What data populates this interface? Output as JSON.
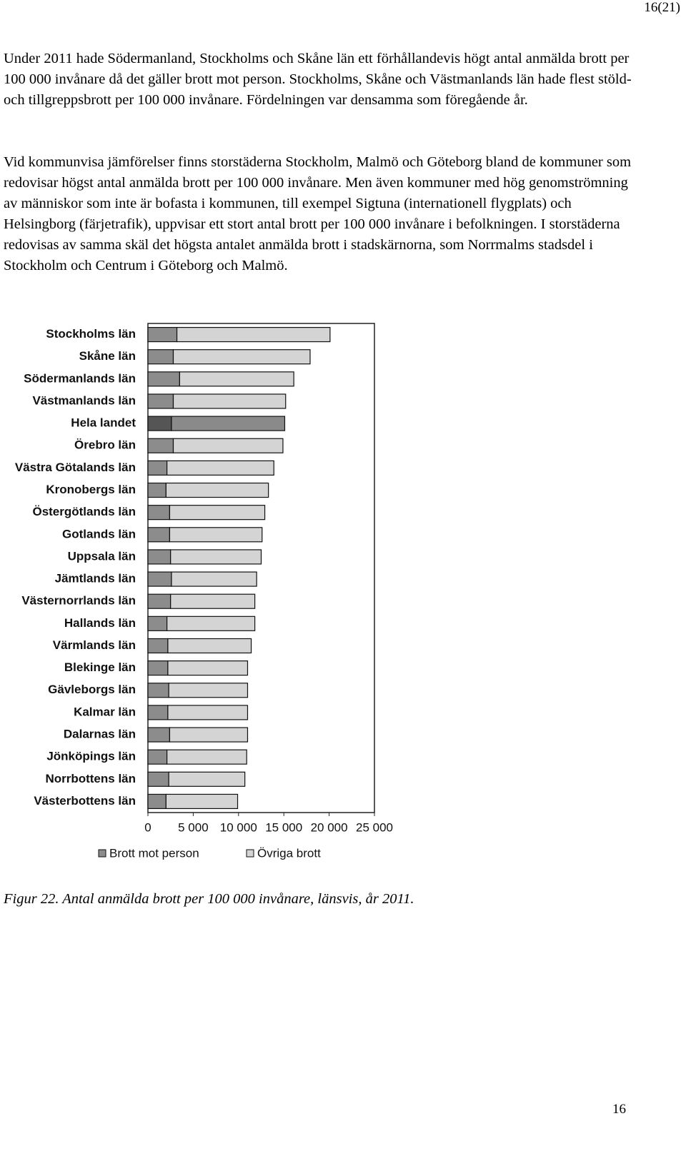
{
  "header": {
    "page_label": "16(21)"
  },
  "paragraphs": [
    "Under 2011 hade Södermanland, Stockholms och Skåne län ett förhållandevis högt antal anmälda brott per 100 000 invånare då det gäller brott mot person. Stockholms, Skåne och Västmanlands län hade flest stöld- och tillgreppsbrott per 100 000 invånare. Fördelningen var densamma som föregående år.",
    "Vid kommunvisa jämförelser finns storstäderna Stockholm, Malmö och Göteborg bland de kommuner som redovisar högst antal anmälda brott per 100 000 invånare. Men även kommuner med hög genomströmning av människor som inte är bofasta i kommunen, till exempel Sigtuna (internationell flygplats) och Helsingborg (färjetrafik), uppvisar ett stort antal brott per 100 000 invånare i befolkningen. I storstäderna redovisas av samma skäl det högsta antalet anmälda brott i stadskärnorna, som Norrmalms stadsdel i Stockholm och Centrum i Göteborg och Malmö."
  ],
  "chart_data": {
    "type": "stacked-barh",
    "categories": [
      "Stockholms län",
      "Skåne län",
      "Södermanlands län",
      "Västmanlands län",
      "Hela landet",
      "Örebro län",
      "Västra Götalands län",
      "Kronobergs län",
      "Östergötlands län",
      "Gotlands län",
      "Uppsala län",
      "Jämtlands län",
      "Västernorrlands län",
      "Hallands län",
      "Värmlands län",
      "Blekinge län",
      "Gävleborgs län",
      "Kalmar län",
      "Dalarnas län",
      "Jönköpings län",
      "Norrbottens län",
      "Västerbottens län"
    ],
    "series": [
      {
        "name": "Brott mot person",
        "color": "#8c8c8c",
        "highlight_color": "#555555",
        "values": [
          3200,
          2800,
          3500,
          2800,
          2600,
          2800,
          2100,
          2000,
          2400,
          2400,
          2500,
          2600,
          2500,
          2100,
          2200,
          2200,
          2300,
          2200,
          2400,
          2100,
          2300,
          2000
        ]
      },
      {
        "name": "Övriga brott",
        "color": "#d4d4d4",
        "highlight_color": "#8a8a8a",
        "values": [
          16900,
          15100,
          12600,
          12400,
          12500,
          12100,
          11800,
          11300,
          10500,
          10200,
          10000,
          9400,
          9300,
          9700,
          9200,
          8800,
          8700,
          8800,
          8600,
          8800,
          8400,
          7900
        ]
      }
    ],
    "highlight": "Hela landet",
    "xlim": [
      0,
      25000
    ],
    "xticks": [
      0,
      {
        "value": 5000,
        "label": "5 000"
      },
      {
        "value": 10000,
        "label": "10 000"
      },
      {
        "value": 15000,
        "label": "15 000"
      },
      {
        "value": 20000,
        "label": "20 000"
      },
      {
        "value": 25000,
        "label": "25 000"
      }
    ],
    "legend": "bottom"
  },
  "caption": "Figur 22. Antal anmälda brott per 100 000 invånare, länsvis, år 2011.",
  "footer": {
    "page_number": "16"
  }
}
